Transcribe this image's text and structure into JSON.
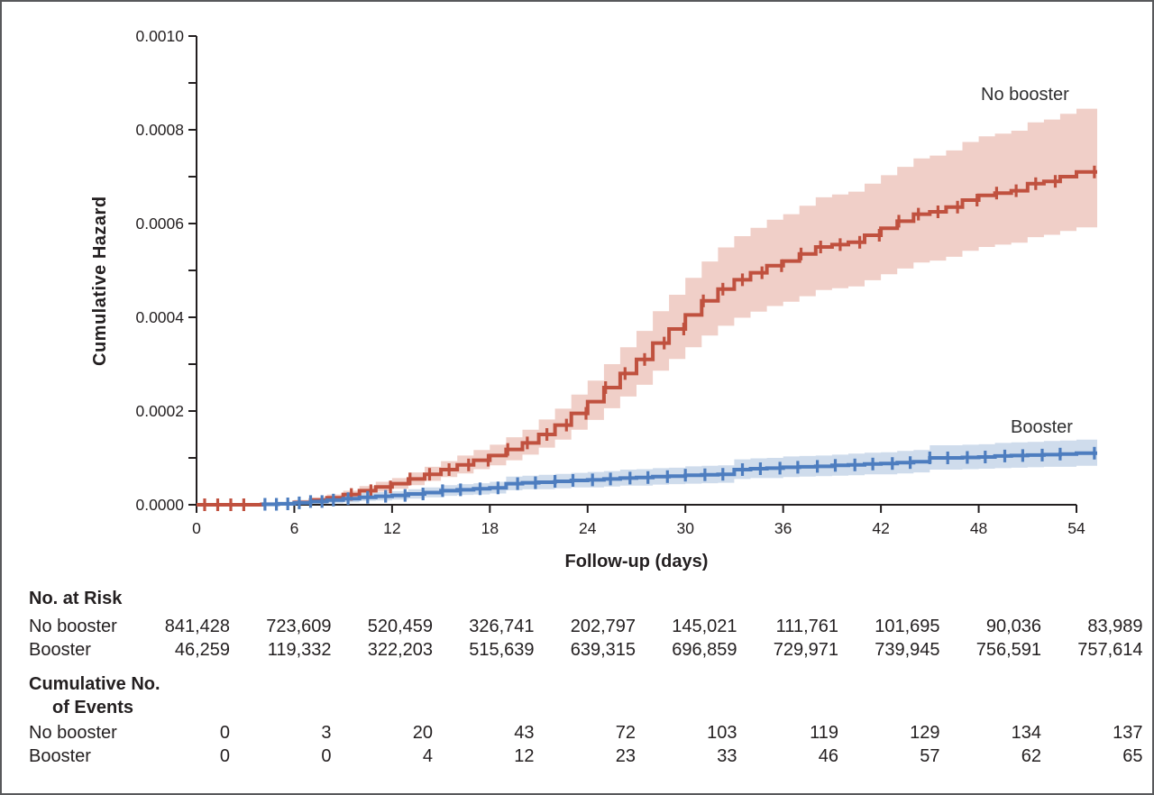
{
  "figure": {
    "ylabel": "Cumulative Hazard",
    "xlabel": "Follow-up (days)"
  },
  "chart_data": {
    "type": "line",
    "subtype": "step-cumulative-hazard-with-confidence-bands",
    "xlabel": "Follow-up (days)",
    "ylabel": "Cumulative Hazard",
    "xlim": [
      0,
      54
    ],
    "ylim": [
      0,
      0.001
    ],
    "grid": false,
    "value_unit": 0.0001,
    "x_ticks": [
      0,
      6,
      12,
      18,
      24,
      30,
      36,
      42,
      48,
      54
    ],
    "x_tick_labels": [
      "0",
      "6",
      "12",
      "18",
      "24",
      "30",
      "36",
      "42",
      "48",
      "54"
    ],
    "y_minor_tick_step_e4": 1,
    "y_tick_labels": [
      "0.0000",
      "0.0002",
      "0.0004",
      "0.0006",
      "0.0008",
      "0.0010"
    ],
    "y_labeled_values_e4": [
      0,
      2,
      4,
      6,
      8,
      10
    ],
    "series": [
      {
        "name": "No booster",
        "color": "#c0513f",
        "band_color": "#f0cfc8",
        "days": "0-54 (index = day)",
        "values_e4": [
          0,
          0,
          0,
          0,
          0.01,
          0.02,
          0.05,
          0.1,
          0.15,
          0.22,
          0.3,
          0.38,
          0.45,
          0.55,
          0.65,
          0.75,
          0.85,
          0.95,
          1.05,
          1.18,
          1.32,
          1.5,
          1.7,
          1.95,
          2.2,
          2.5,
          2.8,
          3.1,
          3.45,
          3.75,
          4.05,
          4.35,
          4.6,
          4.8,
          4.95,
          5.1,
          5.2,
          5.35,
          5.5,
          5.55,
          5.6,
          5.75,
          5.9,
          6.05,
          6.2,
          6.25,
          6.35,
          6.5,
          6.6,
          6.65,
          6.7,
          6.85,
          6.9,
          7,
          7.1
        ],
        "band_hi_e4": [
          0,
          0,
          0,
          0,
          0.05,
          0.06,
          0.1,
          0.16,
          0.22,
          0.3,
          0.4,
          0.49,
          0.57,
          0.69,
          0.81,
          0.93,
          1.05,
          1.17,
          1.28,
          1.44,
          1.6,
          1.82,
          2.05,
          2.35,
          2.65,
          3,
          3.36,
          3.71,
          4.13,
          4.48,
          4.84,
          5.19,
          5.49,
          5.73,
          5.91,
          6.08,
          6.2,
          6.38,
          6.56,
          6.62,
          6.68,
          6.85,
          7.03,
          7.21,
          7.39,
          7.45,
          7.56,
          7.74,
          7.86,
          7.92,
          7.98,
          8.16,
          8.22,
          8.34,
          8.45
        ],
        "band_lo_e4": [
          0,
          0,
          0,
          0,
          0,
          0,
          0,
          0,
          0.09,
          0.14,
          0.21,
          0.28,
          0.34,
          0.42,
          0.51,
          0.59,
          0.67,
          0.76,
          0.84,
          0.95,
          1.07,
          1.22,
          1.39,
          1.6,
          1.81,
          2.06,
          2.31,
          2.56,
          2.86,
          3.11,
          3.36,
          3.61,
          3.82,
          3.99,
          4.12,
          4.24,
          4.33,
          4.45,
          4.58,
          4.62,
          4.66,
          4.79,
          4.92,
          5.04,
          5.17,
          5.21,
          5.29,
          5.42,
          5.5,
          5.55,
          5.59,
          5.71,
          5.76,
          5.84,
          5.92
        ],
        "censor_days": [
          0.5,
          1.3,
          2.1,
          2.9,
          9.5,
          10.7,
          11.9,
          13.1,
          14.3,
          15.5,
          16.7,
          17.9,
          19.1,
          20.3,
          21.5,
          22.7,
          23.9,
          25.1,
          26.3,
          27.5,
          28.7,
          29.9,
          31.1,
          32.3,
          33.5,
          34.7,
          35.9,
          37.1,
          38.3,
          39.5,
          40.7,
          41.9,
          43.1,
          44.3,
          45.5,
          46.7,
          47.9,
          49.1,
          50.3,
          51.5,
          52.7,
          55.1
        ],
        "line_start_day": 0
      },
      {
        "name": "Booster",
        "color": "#4d7dbf",
        "band_color": "#cfdcec",
        "days": "0-54 (index = day)",
        "values_e4": [
          0,
          0,
          0,
          0,
          0.01,
          0.02,
          0.04,
          0.07,
          0.1,
          0.13,
          0.16,
          0.18,
          0.2,
          0.23,
          0.26,
          0.3,
          0.32,
          0.34,
          0.36,
          0.45,
          0.47,
          0.48,
          0.5,
          0.52,
          0.53,
          0.55,
          0.57,
          0.58,
          0.6,
          0.61,
          0.63,
          0.64,
          0.65,
          0.75,
          0.77,
          0.78,
          0.8,
          0.81,
          0.82,
          0.84,
          0.85,
          0.87,
          0.88,
          0.9,
          0.92,
          1,
          1,
          1.01,
          1.02,
          1.04,
          1.05,
          1.06,
          1.07,
          1.08,
          1.1
        ],
        "band_hi_e4": [
          0,
          0,
          0,
          0,
          0.06,
          0.07,
          0.1,
          0.14,
          0.17,
          0.21,
          0.25,
          0.27,
          0.29,
          0.33,
          0.37,
          0.42,
          0.44,
          0.46,
          0.49,
          0.6,
          0.62,
          0.64,
          0.66,
          0.68,
          0.7,
          0.72,
          0.75,
          0.76,
          0.78,
          0.79,
          0.82,
          0.83,
          0.84,
          0.97,
          0.99,
          1,
          1.03,
          1.04,
          1.05,
          1.07,
          1.09,
          1.11,
          1.12,
          1.15,
          1.17,
          1.27,
          1.27,
          1.28,
          1.29,
          1.32,
          1.33,
          1.34,
          1.36,
          1.37,
          1.39
        ],
        "band_lo_e4": [
          0,
          0,
          0,
          0,
          0,
          0,
          0,
          0.01,
          0.03,
          0.05,
          0.08,
          0.09,
          0.11,
          0.13,
          0.16,
          0.19,
          0.21,
          0.22,
          0.24,
          0.31,
          0.33,
          0.33,
          0.35,
          0.37,
          0.37,
          0.39,
          0.41,
          0.41,
          0.43,
          0.44,
          0.45,
          0.46,
          0.47,
          0.55,
          0.57,
          0.57,
          0.59,
          0.6,
          0.61,
          0.62,
          0.63,
          0.65,
          0.65,
          0.67,
          0.69,
          0.75,
          0.75,
          0.76,
          0.77,
          0.78,
          0.79,
          0.8,
          0.81,
          0.81,
          0.83
        ],
        "censor_days": [
          4.2,
          4.9,
          5.6,
          6.3,
          7,
          7.7,
          8.4,
          9.3,
          10.5,
          11.6,
          12.8,
          13.9,
          15.1,
          16.2,
          17.4,
          18.5,
          19.7,
          20.8,
          22,
          23.1,
          24.3,
          25.4,
          26.6,
          27.7,
          28.9,
          30,
          31.2,
          32.3,
          33.5,
          34.6,
          35.8,
          36.9,
          38.1,
          39.2,
          40.4,
          41.5,
          42.7,
          43.8,
          45,
          46.1,
          47.3,
          48.4,
          49.6,
          50.7,
          51.9,
          53,
          55.1
        ],
        "line_start_day": 4
      }
    ]
  },
  "risk_table": {
    "header_no_at_risk": "No. at Risk",
    "header_cum_events_line1": "Cumulative No.",
    "header_cum_events_line2": "of Events",
    "row_labels": [
      "No booster",
      "Booster"
    ],
    "timepoints": [
      0,
      6,
      12,
      18,
      24,
      30,
      36,
      42,
      48,
      54
    ],
    "no_at_risk": {
      "no_booster": [
        "841,428",
        "723,609",
        "520,459",
        "326,741",
        "202,797",
        "145,021",
        "111,761",
        "101,695",
        "90,036",
        "83,989"
      ],
      "booster": [
        "46,259",
        "119,332",
        "322,203",
        "515,639",
        "639,315",
        "696,859",
        "729,971",
        "739,945",
        "756,591",
        "757,614"
      ]
    },
    "cumulative_events": {
      "no_booster": [
        "0",
        "3",
        "20",
        "43",
        "72",
        "103",
        "119",
        "129",
        "134",
        "137"
      ],
      "booster": [
        "0",
        "0",
        "4",
        "12",
        "23",
        "33",
        "46",
        "57",
        "62",
        "65"
      ]
    }
  },
  "style_colors": {
    "no_booster_line": "#c0513f",
    "no_booster_band": "#f0cfc8",
    "booster_line": "#4d7dbf",
    "booster_band": "#cfdcec",
    "axis": "#231f20",
    "figure_border": "#58595b"
  }
}
